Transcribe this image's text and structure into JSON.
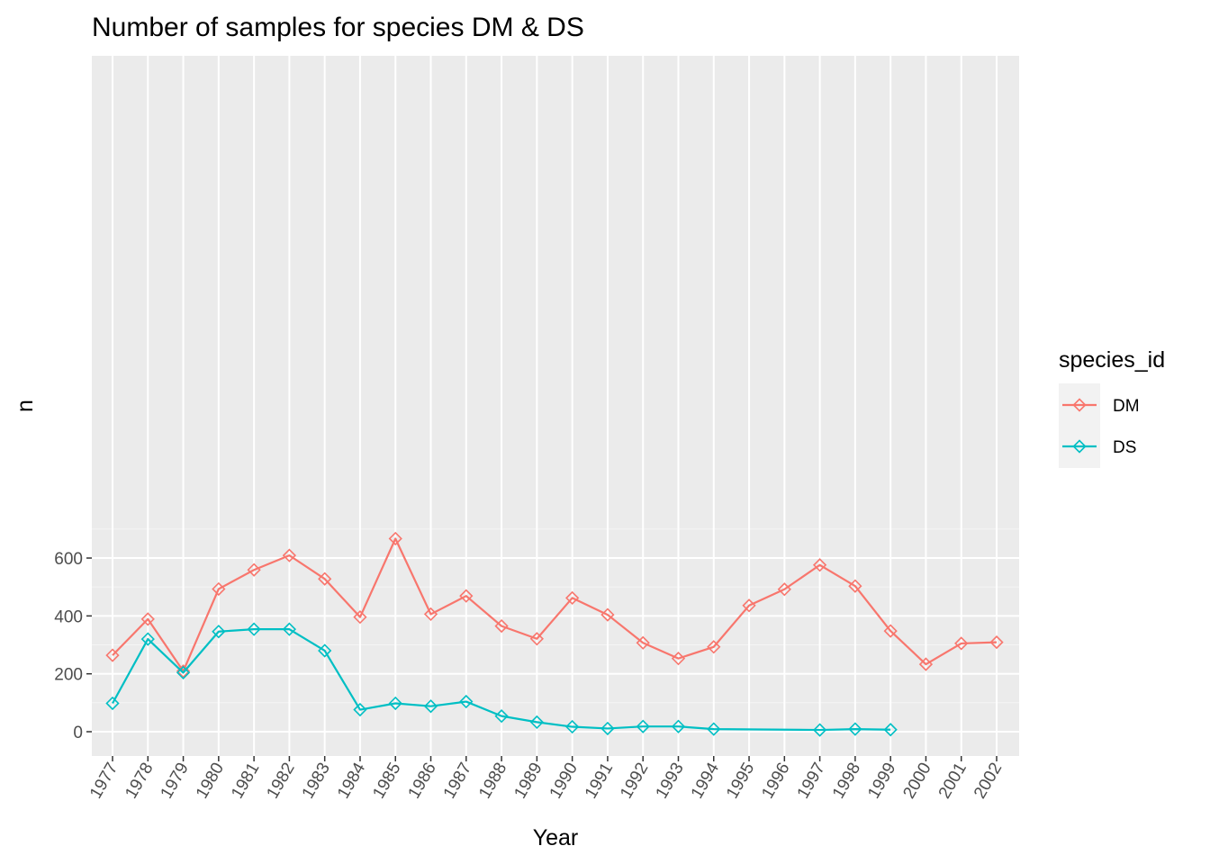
{
  "chart_data": {
    "type": "line",
    "title": "Number of samples for species DM & DS",
    "xlabel": "Year",
    "ylabel": "n",
    "x": [
      1977,
      1978,
      1979,
      1980,
      1981,
      1982,
      1983,
      1984,
      1985,
      1986,
      1987,
      1988,
      1989,
      1990,
      1991,
      1992,
      1993,
      1994,
      1995,
      1996,
      1997,
      1998,
      1999,
      2000,
      2001,
      2002
    ],
    "y_ticks": [
      0,
      200,
      400,
      600
    ],
    "ylim": [
      -28,
      700
    ],
    "grid": true,
    "legend": {
      "title": "species_id",
      "position": "right"
    },
    "series": [
      {
        "name": "DM",
        "color": "#F8766D",
        "points": [
          [
            1977,
            264
          ],
          [
            1978,
            389
          ],
          [
            1979,
            209
          ],
          [
            1980,
            493
          ],
          [
            1981,
            559
          ],
          [
            1982,
            609
          ],
          [
            1983,
            528
          ],
          [
            1984,
            396
          ],
          [
            1985,
            667
          ],
          [
            1986,
            406
          ],
          [
            1987,
            469
          ],
          [
            1988,
            365
          ],
          [
            1989,
            321
          ],
          [
            1990,
            462
          ],
          [
            1991,
            404
          ],
          [
            1992,
            307
          ],
          [
            1993,
            253
          ],
          [
            1994,
            293
          ],
          [
            1995,
            436
          ],
          [
            1996,
            492
          ],
          [
            1997,
            576
          ],
          [
            1998,
            503
          ],
          [
            1999,
            348
          ],
          [
            2000,
            233
          ],
          [
            2001,
            305
          ],
          [
            2002,
            309
          ]
        ]
      },
      {
        "name": "DS",
        "color": "#00BFC4",
        "points": [
          [
            1977,
            98
          ],
          [
            1978,
            320
          ],
          [
            1979,
            204
          ],
          [
            1980,
            346
          ],
          [
            1981,
            354
          ],
          [
            1982,
            354
          ],
          [
            1983,
            280
          ],
          [
            1984,
            76
          ],
          [
            1985,
            98
          ],
          [
            1986,
            88
          ],
          [
            1987,
            104
          ],
          [
            1988,
            54
          ],
          [
            1989,
            33
          ],
          [
            1990,
            17
          ],
          [
            1991,
            11
          ],
          [
            1992,
            18
          ],
          [
            1993,
            18
          ],
          [
            1994,
            9
          ],
          [
            1997,
            6
          ],
          [
            1998,
            9
          ],
          [
            1999,
            7
          ]
        ]
      }
    ]
  }
}
